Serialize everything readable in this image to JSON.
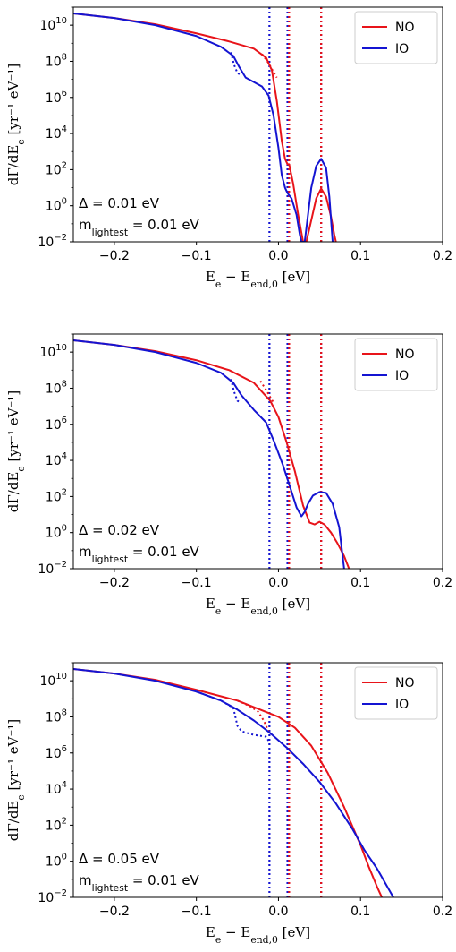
{
  "colors": {
    "NO": "#e8141a",
    "IO": "#1414d2"
  },
  "chart_data": [
    {
      "type": "line",
      "xlabel": "E_e − E_end,0 [eV]",
      "ylabel": "dΓ/dE_e [yr⁻¹ eV⁻¹]",
      "xlim": [
        -0.25,
        0.2
      ],
      "ylim_log10": [
        -2,
        11
      ],
      "y_scale": "log",
      "xticks": [
        "−0.2",
        "−0.1",
        "0.0",
        "0.1",
        "0.2"
      ],
      "yticks": [
        -2,
        0,
        2,
        4,
        6,
        8,
        10
      ],
      "legend": {
        "position": "top-right",
        "entries": [
          "NO",
          "IO"
        ]
      },
      "annotation": [
        "Δ = 0.01 eV",
        "m_lightest = 0.01 eV"
      ],
      "vlines": [
        {
          "x": -0.011,
          "series": "IO"
        },
        {
          "x": 0.011,
          "series": "IO"
        },
        {
          "x": 0.013,
          "series": "NO"
        },
        {
          "x": 0.052,
          "series": "IO"
        },
        {
          "x": 0.052,
          "series": "NO"
        }
      ],
      "series": [
        {
          "name": "NO",
          "style": "solid",
          "x": [
            -0.25,
            -0.2,
            -0.15,
            -0.1,
            -0.06,
            -0.03,
            -0.015,
            -0.008,
            -0.002,
            0.004,
            0.008,
            0.011,
            0.013,
            0.018,
            0.024,
            0.03,
            0.034,
            0.04,
            0.046,
            0.052,
            0.058,
            0.064,
            0.068,
            0.07
          ],
          "log10y": [
            10.65,
            10.4,
            10.05,
            9.55,
            9.1,
            8.7,
            8.2,
            7.5,
            5.8,
            3.6,
            2.6,
            2.3,
            2.3,
            1.2,
            -0.5,
            -2.0,
            -2.0,
            -0.8,
            0.4,
            0.95,
            0.5,
            -0.6,
            -1.6,
            -2.0
          ]
        },
        {
          "name": "NO",
          "style": "dotted",
          "x": [
            -0.02,
            -0.012,
            -0.006,
            -0.002
          ],
          "log10y": [
            8.4,
            7.9,
            7.4,
            7.1
          ]
        },
        {
          "name": "IO",
          "style": "solid",
          "x": [
            -0.25,
            -0.2,
            -0.15,
            -0.1,
            -0.07,
            -0.055,
            -0.048,
            -0.04,
            -0.03,
            -0.02,
            -0.012,
            -0.006,
            0.0,
            0.004,
            0.008,
            0.011,
            0.016,
            0.022,
            0.026,
            0.028,
            0.032,
            0.036,
            0.04,
            0.046,
            0.052,
            0.058,
            0.062,
            0.066
          ],
          "log10y": [
            10.65,
            10.4,
            10.0,
            9.4,
            8.8,
            8.3,
            7.7,
            7.1,
            6.85,
            6.6,
            6.1,
            5.0,
            3.2,
            1.7,
            1.0,
            0.7,
            0.4,
            -0.5,
            -1.6,
            -2.0,
            -2.0,
            -0.5,
            1.0,
            2.2,
            2.6,
            2.1,
            0.5,
            -2.0
          ]
        },
        {
          "name": "IO",
          "style": "dotted",
          "x": [
            -0.058,
            -0.054,
            -0.05,
            -0.046
          ],
          "log10y": [
            8.5,
            7.8,
            7.35,
            7.25
          ]
        }
      ]
    },
    {
      "type": "line",
      "xlabel": "E_e − E_end,0 [eV]",
      "ylabel": "dΓ/dE_e [yr⁻¹ eV⁻¹]",
      "xlim": [
        -0.25,
        0.2
      ],
      "ylim_log10": [
        -2,
        11
      ],
      "y_scale": "log",
      "xticks": [
        "−0.2",
        "−0.1",
        "0.0",
        "0.1",
        "0.2"
      ],
      "yticks": [
        -2,
        0,
        2,
        4,
        6,
        8,
        10
      ],
      "legend": {
        "position": "top-right",
        "entries": [
          "NO",
          "IO"
        ]
      },
      "annotation": [
        "Δ = 0.02 eV",
        "m_lightest = 0.01 eV"
      ],
      "vlines": [
        {
          "x": -0.011,
          "series": "IO"
        },
        {
          "x": 0.011,
          "series": "IO"
        },
        {
          "x": 0.013,
          "series": "NO"
        },
        {
          "x": 0.052,
          "series": "IO"
        },
        {
          "x": 0.052,
          "series": "NO"
        }
      ],
      "series": [
        {
          "name": "NO",
          "style": "solid",
          "x": [
            -0.25,
            -0.2,
            -0.15,
            -0.1,
            -0.06,
            -0.03,
            -0.01,
            0.0,
            0.01,
            0.02,
            0.03,
            0.038,
            0.044,
            0.05,
            0.056,
            0.064,
            0.072,
            0.08,
            0.086
          ],
          "log10y": [
            10.65,
            10.4,
            10.05,
            9.55,
            9.0,
            8.3,
            7.3,
            6.4,
            5.0,
            3.4,
            1.5,
            0.55,
            0.45,
            0.6,
            0.45,
            0.0,
            -0.6,
            -1.3,
            -2.0
          ]
        },
        {
          "name": "NO",
          "style": "dotted",
          "x": [
            -0.022,
            -0.015,
            -0.01,
            -0.006
          ],
          "log10y": [
            8.4,
            7.9,
            7.5,
            7.2
          ]
        },
        {
          "name": "IO",
          "style": "solid",
          "x": [
            -0.25,
            -0.2,
            -0.15,
            -0.1,
            -0.07,
            -0.055,
            -0.045,
            -0.03,
            -0.015,
            -0.005,
            0.005,
            0.015,
            0.022,
            0.028,
            0.032,
            0.036,
            0.042,
            0.05,
            0.058,
            0.066,
            0.074,
            0.08
          ],
          "log10y": [
            10.65,
            10.4,
            10.0,
            9.4,
            8.85,
            8.3,
            7.6,
            6.8,
            6.1,
            5.0,
            3.8,
            2.4,
            1.4,
            0.9,
            1.15,
            1.6,
            2.05,
            2.25,
            2.2,
            1.6,
            0.3,
            -2.0
          ]
        },
        {
          "name": "IO",
          "style": "dotted",
          "x": [
            -0.058,
            -0.054,
            -0.05,
            -0.046
          ],
          "log10y": [
            8.5,
            7.8,
            7.3,
            7.2
          ]
        }
      ]
    },
    {
      "type": "line",
      "xlabel": "E_e − E_end,0 [eV]",
      "ylabel": "dΓ/dE_e [yr⁻¹ eV⁻¹]",
      "xlim": [
        -0.25,
        0.2
      ],
      "ylim_log10": [
        -2,
        11
      ],
      "y_scale": "log",
      "xticks": [
        "−0.2",
        "−0.1",
        "0.0",
        "0.1",
        "0.2"
      ],
      "yticks": [
        -2,
        0,
        2,
        4,
        6,
        8,
        10
      ],
      "legend": {
        "position": "top-right",
        "entries": [
          "NO",
          "IO"
        ]
      },
      "annotation": [
        "Δ = 0.05 eV",
        "m_lightest = 0.01 eV"
      ],
      "vlines": [
        {
          "x": -0.011,
          "series": "IO"
        },
        {
          "x": 0.011,
          "series": "IO"
        },
        {
          "x": 0.013,
          "series": "NO"
        },
        {
          "x": 0.052,
          "series": "IO"
        },
        {
          "x": 0.052,
          "series": "NO"
        }
      ],
      "series": [
        {
          "name": "NO",
          "style": "solid",
          "x": [
            -0.25,
            -0.2,
            -0.15,
            -0.1,
            -0.05,
            0.0,
            0.02,
            0.04,
            0.06,
            0.08,
            0.1,
            0.11,
            0.12,
            0.126
          ],
          "log10y": [
            10.65,
            10.4,
            10.05,
            9.5,
            8.9,
            8.0,
            7.4,
            6.4,
            4.9,
            3.0,
            0.9,
            -0.3,
            -1.4,
            -2.0
          ]
        },
        {
          "name": "NO",
          "style": "dotted",
          "x": [
            -0.05,
            -0.035,
            -0.025,
            -0.018,
            -0.014,
            -0.011
          ],
          "log10y": [
            8.9,
            8.6,
            8.3,
            7.8,
            7.4,
            7.1
          ]
        },
        {
          "name": "IO",
          "style": "solid",
          "x": [
            -0.25,
            -0.2,
            -0.15,
            -0.1,
            -0.07,
            -0.05,
            -0.03,
            -0.01,
            0.01,
            0.03,
            0.05,
            0.07,
            0.09,
            0.105,
            0.12,
            0.13,
            0.14
          ],
          "log10y": [
            10.65,
            10.4,
            10.0,
            9.4,
            8.9,
            8.4,
            7.8,
            7.1,
            6.3,
            5.4,
            4.4,
            3.2,
            1.8,
            0.6,
            -0.4,
            -1.2,
            -2.0
          ]
        },
        {
          "name": "IO",
          "style": "dotted",
          "x": [
            -0.1,
            -0.07,
            -0.055,
            -0.05,
            -0.045,
            -0.03,
            -0.015,
            -0.011
          ],
          "log10y": [
            9.4,
            8.9,
            8.5,
            7.5,
            7.2,
            7.0,
            6.9,
            6.6
          ]
        }
      ]
    }
  ]
}
